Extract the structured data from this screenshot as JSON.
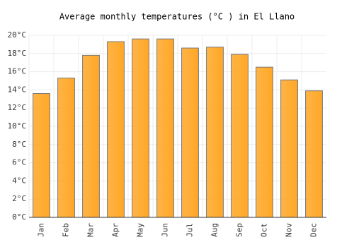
{
  "chart_data": {
    "type": "bar",
    "title": "Average monthly temperatures (°C ) in El Llano",
    "categories": [
      "Jan",
      "Feb",
      "Mar",
      "Apr",
      "May",
      "Jun",
      "Jul",
      "Aug",
      "Sep",
      "Oct",
      "Nov",
      "Dec"
    ],
    "values": [
      13.6,
      15.3,
      17.8,
      19.3,
      19.6,
      19.6,
      18.6,
      18.7,
      17.9,
      16.5,
      15.1,
      13.9
    ],
    "color": "#ffa726",
    "ylim": [
      0,
      20
    ],
    "yticks": [
      {
        "value": 0,
        "label": "0°C"
      },
      {
        "value": 2,
        "label": "2°C"
      },
      {
        "value": 4,
        "label": "4°C"
      },
      {
        "value": 6,
        "label": "6°C"
      },
      {
        "value": 8,
        "label": "8°C"
      },
      {
        "value": 10,
        "label": "10°C"
      },
      {
        "value": 12,
        "label": "12°C"
      },
      {
        "value": 14,
        "label": "14°C"
      },
      {
        "value": 16,
        "label": "16°C"
      },
      {
        "value": 18,
        "label": "18°C"
      },
      {
        "value": 20,
        "label": "20°C"
      }
    ],
    "grid": true
  }
}
